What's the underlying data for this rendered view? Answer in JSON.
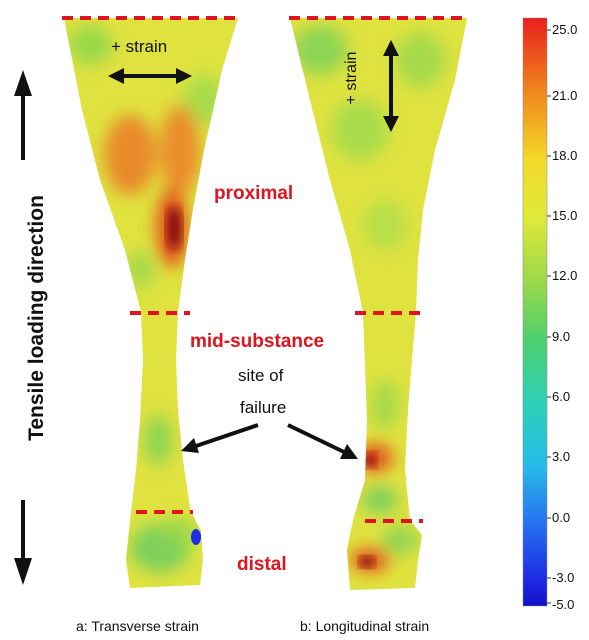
{
  "labels": {
    "plus_strain_a": "+ strain",
    "plus_strain_b": "+ strain",
    "proximal": "proximal",
    "mid_substance": "mid-substance",
    "site_of": "site of",
    "failure": "failure",
    "distal": "distal",
    "loading_direction": "Tensile loading direction"
  },
  "captions": {
    "a": "a: Transverse strain",
    "b": "b: Longitudinal strain"
  },
  "colorbar": {
    "ticks": [
      "25.0",
      "21.0",
      "18.0",
      "15.0",
      "12.0",
      "9.0",
      "6.0",
      "3.0",
      "0.0",
      "-3.0",
      "-5.0"
    ],
    "colors": [
      "#e8201c",
      "#f08a1c",
      "#f3d92a",
      "#dfe93a",
      "#9ad84a",
      "#4ccf6e",
      "#2fd0b4",
      "#27bce8",
      "#2672f0",
      "#1e2ee6",
      "#1210c8"
    ]
  },
  "colors": {
    "strain_base": "#dfe23f",
    "strain_high": "#e2561f",
    "strain_peak": "#8a0f0f",
    "strain_low": "#7fd05a",
    "marker_dash": "#e0141e",
    "annotation_red": "#e0141e"
  }
}
